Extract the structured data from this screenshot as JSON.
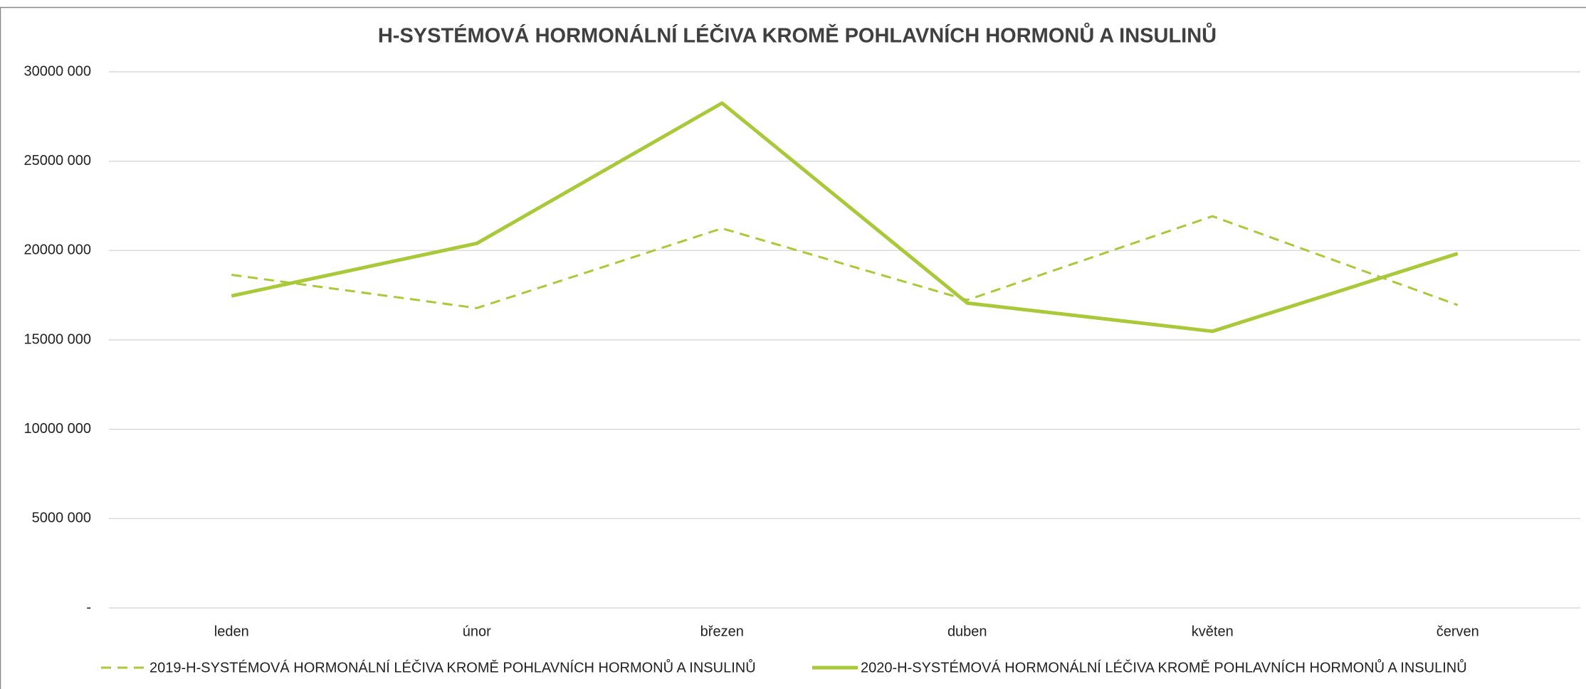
{
  "chart_data": {
    "type": "line",
    "title": "H-SYSTÉMOVÁ HORMONÁLNÍ LÉČIVA KROMĚ POHLAVNÍCH HORMONŮ A INSULINŮ",
    "categories": [
      "leden",
      "únor",
      "březen",
      "duben",
      "květen",
      "červen"
    ],
    "series": [
      {
        "name": "2019-H-SYSTÉMOVÁ HORMONÁLNÍ LÉČIVA KROMĚ POHLAVNÍCH HORMONŮ A INSULINŮ",
        "color": "#a9c83a",
        "dash": true,
        "values": [
          18640000,
          16780000,
          21240000,
          17230000,
          21920000,
          16950000
        ]
      },
      {
        "name": "2020-H-SYSTÉMOVÁ HORMONÁLNÍ LÉČIVA KROMĚ POHLAVNÍCH HORMONŮ A INSULINŮ",
        "color": "#a9c83a",
        "dash": false,
        "values": [
          17460000,
          20400000,
          28250000,
          17060000,
          15480000,
          19830000
        ]
      }
    ],
    "ylim": [
      0,
      30000000
    ],
    "yticks": [
      {
        "value": 0,
        "label": "-"
      },
      {
        "value": 5000000,
        "label": "5000 000"
      },
      {
        "value": 10000000,
        "label": "10000 000"
      },
      {
        "value": 15000000,
        "label": "15000 000"
      },
      {
        "value": 20000000,
        "label": "20000 000"
      },
      {
        "value": 25000000,
        "label": "25000 000"
      },
      {
        "value": 30000000,
        "label": "30000 000"
      }
    ],
    "grid": true,
    "legend": "bottom"
  }
}
